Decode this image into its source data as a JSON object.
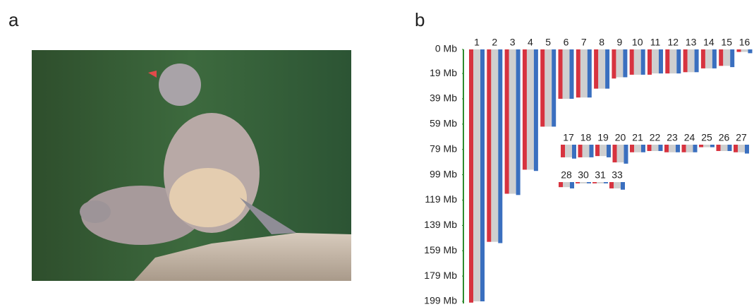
{
  "panel_labels": [
    "a",
    "b"
  ],
  "chart_data": {
    "type": "bar",
    "categories": [
      "1",
      "2",
      "3",
      "4",
      "5",
      "6",
      "7",
      "8",
      "9",
      "10",
      "11",
      "12",
      "13",
      "14",
      "15",
      "16",
      "17",
      "18",
      "19",
      "20",
      "21",
      "22",
      "23",
      "24",
      "25",
      "26",
      "27",
      "28",
      "30",
      "31",
      "33"
    ],
    "series": [
      {
        "color": "#d7333f",
        "values": [
          200,
          152,
          114,
          95,
          61,
          39,
          38,
          31,
          23,
          20,
          20,
          19,
          18,
          15,
          13,
          2,
          10,
          10,
          9,
          14,
          6,
          5,
          6,
          6,
          2,
          5,
          6,
          4,
          1,
          1,
          5
        ]
      },
      {
        "color": "#3a6fbf",
        "values": [
          199,
          153,
          115,
          96,
          61,
          39,
          38,
          31,
          22,
          20,
          19,
          19,
          18,
          15,
          14,
          3,
          11,
          10,
          10,
          15,
          6,
          5,
          6,
          6,
          2,
          5,
          7,
          5,
          1,
          1,
          6
        ]
      }
    ],
    "ylim": [
      0,
      199
    ],
    "yticks": [
      {
        "value": 0,
        "label": "0 Mb"
      },
      {
        "value": 19,
        "label": "19 Mb"
      },
      {
        "value": 39,
        "label": "39 Mb"
      },
      {
        "value": 59,
        "label": "59 Mb"
      },
      {
        "value": 79,
        "label": "79 Mb"
      },
      {
        "value": 99,
        "label": "99 Mb"
      },
      {
        "value": 119,
        "label": "119 Mb"
      },
      {
        "value": 139,
        "label": "139 Mb"
      },
      {
        "value": 159,
        "label": "159 Mb"
      },
      {
        "value": 179,
        "label": "179 Mb"
      },
      {
        "value": 199,
        "label": "199 Mb"
      }
    ]
  }
}
